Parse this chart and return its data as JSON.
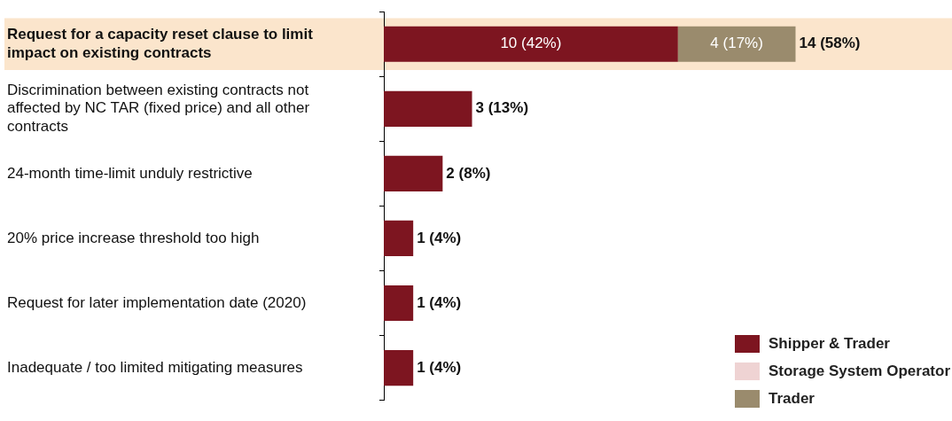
{
  "chart_data": {
    "type": "bar",
    "orientation": "horizontal",
    "stacked": true,
    "categories": [
      "Request for a capacity reset clause to limit impact on existing contracts",
      "Discrimination between existing contracts not affected by NC TAR (fixed price) and all other contracts",
      "24-month time-limit unduly restrictive",
      "20% price increase threshold too high",
      "Request for later implementation date (2020)",
      "Inadequate / too limited mitigating measures"
    ],
    "series": [
      {
        "name": "Shipper & Trader",
        "color": "#7d1520",
        "values": [
          10,
          3,
          2,
          1,
          1,
          1
        ],
        "value_labels": [
          "10 (42%)",
          null,
          null,
          null,
          null,
          null
        ]
      },
      {
        "name": "Storage System Operator",
        "color": "#efd3d3",
        "values": [
          null,
          null,
          null,
          null,
          null,
          null
        ]
      },
      {
        "name": "Trader",
        "color": "#9a8b6d",
        "values": [
          4,
          null,
          null,
          null,
          null,
          null
        ],
        "value_labels": [
          "4 (17%)",
          null,
          null,
          null,
          null,
          null
        ]
      }
    ],
    "totals": [
      "14 (58%)",
      "3 (13%)",
      "2 (8%)",
      "1 (4%)",
      "1 (4%)",
      "1 (4%)"
    ],
    "bands": [
      {
        "axis": "y",
        "from": "Request for a capacity reset clause to limit impact on existing contracts",
        "to": "Request for a capacity reset clause to limit impact on existing contracts",
        "color": "#fbe5cc"
      }
    ],
    "legend": "bottom right",
    "grid": false
  }
}
